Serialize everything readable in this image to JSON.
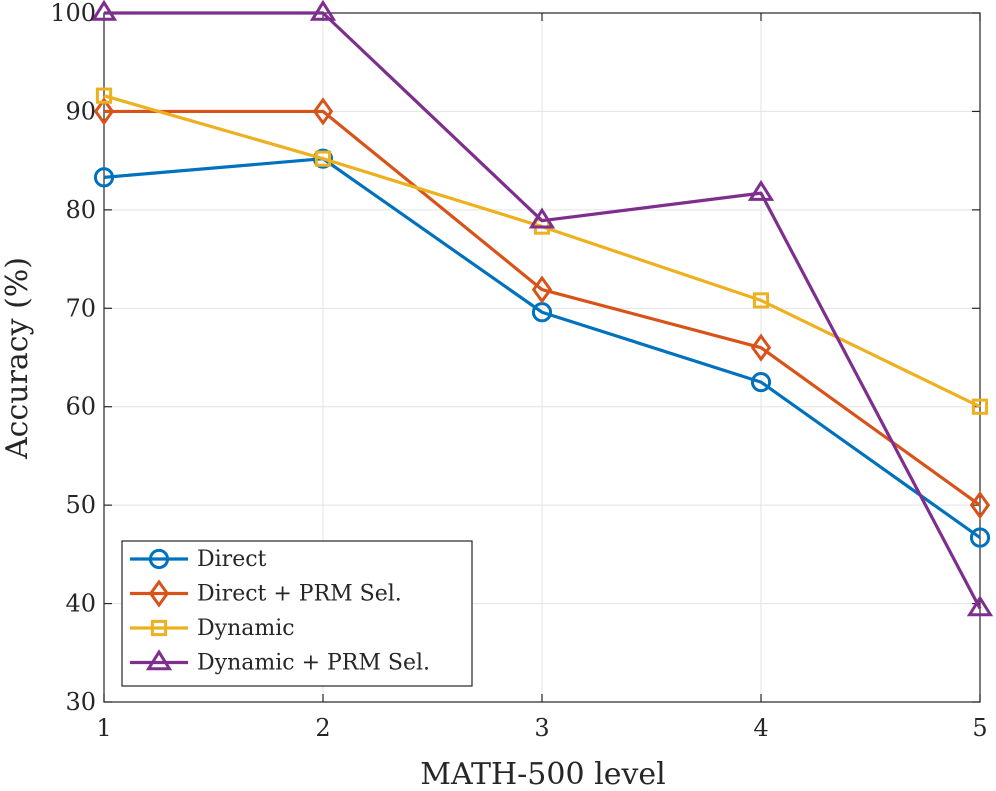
{
  "chart_data": {
    "type": "line",
    "title": "",
    "xlabel": "MATH-500 level",
    "ylabel": "Accuracy (%)",
    "x": [
      1,
      2,
      3,
      4,
      5
    ],
    "xlim": [
      1,
      5
    ],
    "ylim": [
      30,
      100
    ],
    "xticks": [
      1,
      2,
      3,
      4,
      5
    ],
    "yticks": [
      30,
      40,
      50,
      60,
      70,
      80,
      90,
      100
    ],
    "grid": true,
    "legend_position": "bottom-left",
    "series": [
      {
        "name": "Direct",
        "values": [
          83.3,
          85.2,
          69.6,
          62.5,
          46.7
        ],
        "color": "#0072BD",
        "marker": "circle"
      },
      {
        "name": "Direct + PRM Sel.",
        "values": [
          90.0,
          90.0,
          71.9,
          66.0,
          50.0
        ],
        "color": "#D95319",
        "marker": "diamond"
      },
      {
        "name": "Dynamic",
        "values": [
          91.6,
          85.2,
          78.3,
          70.8,
          60.0
        ],
        "color": "#EDB120",
        "marker": "square"
      },
      {
        "name": "Dynamic + PRM Sel.",
        "values": [
          100.0,
          100.0,
          78.9,
          81.7,
          39.5
        ],
        "color": "#7E2F8E",
        "marker": "triangle"
      }
    ]
  }
}
